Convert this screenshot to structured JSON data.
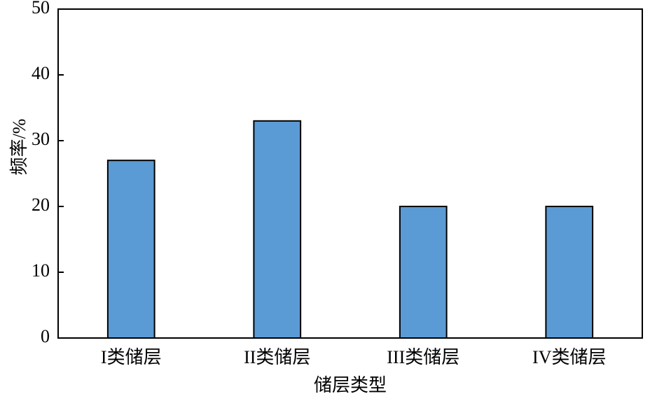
{
  "chart_data": {
    "type": "bar",
    "categories": [
      "I类储层",
      "II类储层",
      "III类储层",
      "IV类储层"
    ],
    "values": [
      27,
      33,
      20,
      20
    ],
    "color": "#5b9bd5",
    "ylim": [
      0,
      50
    ],
    "yticks": [
      0,
      10,
      20,
      30,
      40,
      50
    ],
    "ylabel": "频率/%",
    "xlabel": "储层类型"
  }
}
